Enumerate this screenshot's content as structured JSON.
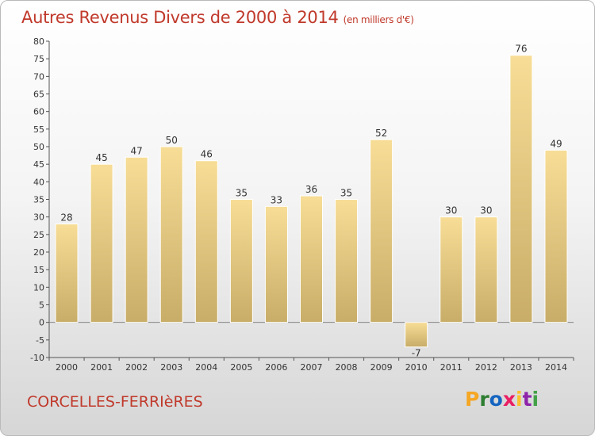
{
  "title": "Autres Revenus Divers de 2000 à 2014",
  "unit": "(en milliers d'€)",
  "commune": "CORCELLES-FERRIèRES",
  "brand": {
    "letters": [
      "P",
      "r",
      "o",
      "x",
      "i",
      "t",
      "i"
    ],
    "colors": [
      "#f5a623",
      "#2e7d32",
      "#1565c0",
      "#e91e63",
      "#fbc02d",
      "#8e24aa",
      "#43a047"
    ]
  },
  "colors": {
    "bar_light": "#f7dd96",
    "bar_dark": "#c8ad68",
    "title": "#c0392b"
  },
  "chart_data": {
    "type": "bar",
    "categories": [
      "2000",
      "2001",
      "2002",
      "2003",
      "2004",
      "2005",
      "2006",
      "2007",
      "2008",
      "2009",
      "2010",
      "2011",
      "2012",
      "2013",
      "2014"
    ],
    "values": [
      28,
      45,
      47,
      50,
      46,
      35,
      33,
      36,
      35,
      52,
      -7,
      30,
      30,
      76,
      49
    ],
    "ylim": [
      -10,
      80
    ],
    "yticks": [
      -10,
      -5,
      0,
      5,
      10,
      15,
      20,
      25,
      30,
      35,
      40,
      45,
      50,
      55,
      60,
      65,
      70,
      75,
      80
    ],
    "grid": false,
    "xlabel": "",
    "ylabel": ""
  }
}
